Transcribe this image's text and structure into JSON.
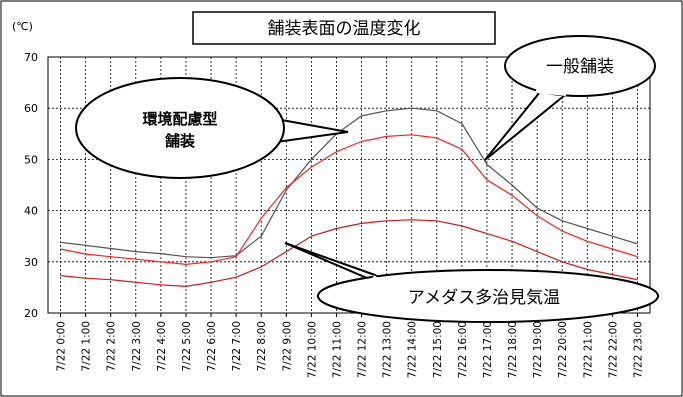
{
  "chart_data": {
    "type": "line",
    "title": "舗装表面の温度変化",
    "ylabel": "(℃)",
    "ylim": [
      20,
      70
    ],
    "yticks": [
      20,
      30,
      40,
      50,
      60,
      70
    ],
    "grid": true,
    "categories": [
      "7/22 0:00",
      "7/22 1:00",
      "7/22 2:00",
      "7/22 3:00",
      "7/22 4:00",
      "7/22 5:00",
      "7/22 6:00",
      "7/22 7:00",
      "7/22 8:00",
      "7/22 9:00",
      "7/22 10:00",
      "7/22 11:00",
      "7/22 12:00",
      "7/22 13:00",
      "7/22 14:00",
      "7/22 15:00",
      "7/22 16:00",
      "7/22 17:00",
      "7/22 18:00",
      "7/22 19:00",
      "7/22 20:00",
      "7/22 21:00",
      "7/22 22:00",
      "7/22 23:00"
    ],
    "series": [
      {
        "name": "一般舗装",
        "color": "#555555",
        "values": [
          33.8,
          33.2,
          32.6,
          32.0,
          31.6,
          31.0,
          30.8,
          31.2,
          35.0,
          44.0,
          50.0,
          55.0,
          58.5,
          59.5,
          60.0,
          59.5,
          57.0,
          49.0,
          45.0,
          40.5,
          38.0,
          36.5,
          35.0,
          33.5
        ]
      },
      {
        "name": "環境配慮型舗装",
        "color": "#ff2020",
        "values": [
          32.5,
          31.5,
          31.0,
          30.5,
          30.0,
          29.5,
          30.0,
          31.0,
          38.5,
          44.5,
          48.5,
          51.5,
          53.5,
          54.5,
          54.8,
          54.2,
          52.0,
          46.0,
          43.0,
          39.0,
          36.0,
          34.0,
          32.5,
          31.0
        ]
      },
      {
        "name": "アメダス多治見気温",
        "color": "#cc1a1a",
        "values": [
          27.3,
          26.8,
          26.5,
          26.0,
          25.5,
          25.2,
          26.0,
          27.0,
          29.0,
          32.0,
          35.0,
          36.5,
          37.5,
          38.0,
          38.2,
          38.0,
          37.0,
          35.5,
          34.0,
          32.0,
          30.0,
          28.5,
          27.5,
          26.5
        ]
      }
    ],
    "annotations": [
      {
        "text": "一般舗装"
      },
      {
        "text": "環境配慮型\n舗装"
      },
      {
        "text": "アメダス多治見気温"
      }
    ]
  }
}
